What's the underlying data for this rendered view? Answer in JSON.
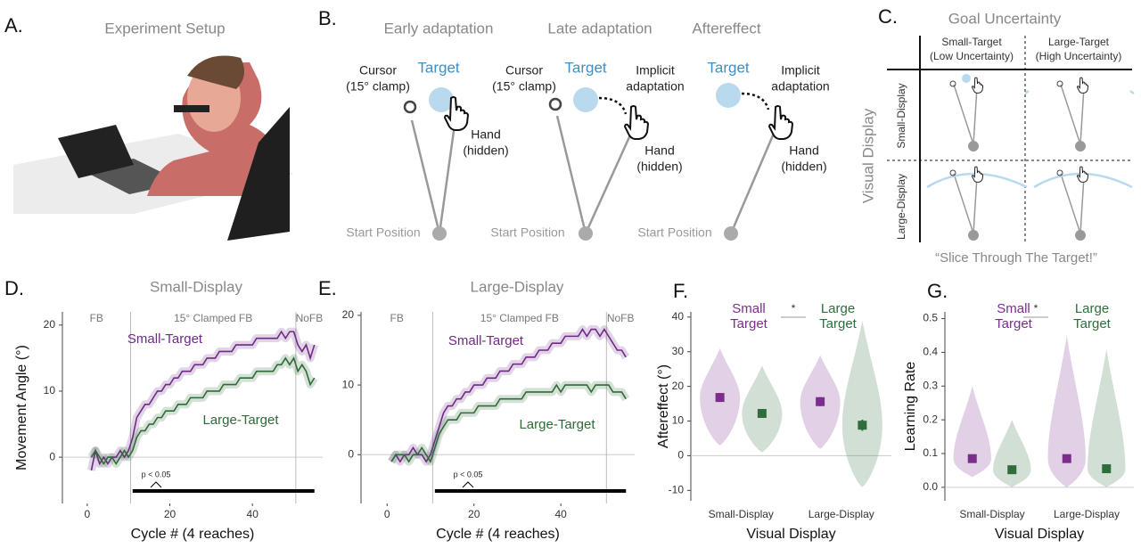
{
  "panel_a": {
    "label": "A.",
    "title": "Experiment Setup"
  },
  "panel_b": {
    "label": "B.",
    "panels": [
      {
        "title": "Early adaptation",
        "cursor": [
          "Cursor",
          "(15° clamp)"
        ],
        "target": "Target",
        "hand": [
          "Hand",
          "(hidden)"
        ],
        "start": "Start Position"
      },
      {
        "title": "Late adaptation",
        "cursor": [
          "Cursor",
          "(15° clamp)"
        ],
        "target": "Target",
        "implicit": [
          "Implicit",
          "adaptation"
        ],
        "hand": [
          "Hand",
          "(hidden)"
        ],
        "start": "Start Position"
      },
      {
        "title": "Aftereffect",
        "target": "Target",
        "implicit": [
          "Implicit",
          "adaptation"
        ],
        "hand": [
          "Hand",
          "(hidden)"
        ],
        "start": "Start Position"
      }
    ]
  },
  "panel_c": {
    "label": "C.",
    "title": "Goal Uncertainty",
    "columns": [
      [
        "Small-Target",
        "(Low Uncertainty)"
      ],
      [
        "Large-Target",
        "(High Uncertainty)"
      ]
    ],
    "rows": [
      "Small-Display",
      "Large-Display"
    ],
    "row_axis": "Visual Display",
    "footer": "“Slice Through The Target!”"
  },
  "chart_data": [
    {
      "type": "line",
      "panel_label": "D.",
      "title": "Small-Display",
      "x_label": "Cycle # (4 reaches)",
      "y_label": "Movement Angle (°)",
      "x": [
        1,
        2,
        3,
        4,
        5,
        6,
        7,
        8,
        9,
        10,
        11,
        12,
        13,
        14,
        15,
        16,
        17,
        18,
        19,
        20,
        21,
        22,
        23,
        24,
        25,
        26,
        27,
        28,
        29,
        30,
        31,
        32,
        33,
        34,
        35,
        36,
        37,
        38,
        39,
        40,
        41,
        42,
        43,
        44,
        45,
        46,
        47,
        48,
        49,
        50,
        51,
        52,
        53,
        54,
        55
      ],
      "series": [
        {
          "name": "Small-Target",
          "color": "#6f2a86",
          "values": [
            -2,
            1,
            -1,
            0,
            -1,
            0,
            0,
            1,
            0,
            1,
            3,
            6,
            7,
            8,
            8,
            9,
            10,
            10,
            11,
            11,
            12,
            12,
            13,
            13,
            13,
            14,
            14,
            14,
            15,
            15,
            15,
            16,
            16,
            16,
            16,
            17,
            17,
            17,
            17,
            17,
            18,
            18,
            18,
            18,
            18,
            18,
            19,
            18,
            19,
            19,
            17,
            16,
            17,
            15,
            17
          ]
        },
        {
          "name": "Large-Target",
          "color": "#2d6b37",
          "values": [
            0,
            1,
            0,
            -1,
            0,
            0,
            -1,
            0,
            1,
            0,
            1,
            3,
            4,
            4,
            5,
            5,
            6,
            6,
            7,
            7,
            7,
            8,
            8,
            8,
            9,
            9,
            9,
            9,
            10,
            10,
            10,
            10,
            11,
            11,
            11,
            11,
            12,
            12,
            12,
            12,
            13,
            13,
            13,
            13,
            13,
            14,
            14,
            15,
            14,
            15,
            13,
            14,
            13,
            11,
            12
          ]
        }
      ],
      "xlim": [
        -6,
        57
      ],
      "xticks": [
        0,
        20,
        40
      ],
      "ylim": [
        -7,
        22
      ],
      "yticks": [
        0,
        10,
        20
      ],
      "phases": [
        "FB",
        "15° Clamped FB",
        "NoFB"
      ],
      "phase_bounds": [
        10.5,
        50.5
      ],
      "sig_label": "p < 0.05",
      "sig_range": [
        11,
        55
      ]
    },
    {
      "type": "line",
      "panel_label": "E.",
      "title": "Large-Display",
      "x_label": "Cycle # (4 reaches)",
      "x": [
        1,
        2,
        3,
        4,
        5,
        6,
        7,
        8,
        9,
        10,
        11,
        12,
        13,
        14,
        15,
        16,
        17,
        18,
        19,
        20,
        21,
        22,
        23,
        24,
        25,
        26,
        27,
        28,
        29,
        30,
        31,
        32,
        33,
        34,
        35,
        36,
        37,
        38,
        39,
        40,
        41,
        42,
        43,
        44,
        45,
        46,
        47,
        48,
        49,
        50,
        51,
        52,
        53,
        54,
        55
      ],
      "series": [
        {
          "name": "Small-Target",
          "color": "#6f2a86",
          "values": [
            -1,
            0,
            -1,
            0,
            0,
            1,
            0,
            0,
            -1,
            0,
            2,
            4,
            6,
            7,
            7,
            8,
            8,
            9,
            9,
            10,
            10,
            10,
            11,
            11,
            11,
            12,
            12,
            12,
            13,
            13,
            13,
            14,
            14,
            14,
            15,
            15,
            15,
            16,
            16,
            16,
            17,
            17,
            17,
            17,
            18,
            17,
            18,
            18,
            17,
            18,
            17,
            16,
            15,
            15,
            14
          ]
        },
        {
          "name": "Large-Target",
          "color": "#2d6b37",
          "values": [
            -1,
            0,
            0,
            0,
            -1,
            0,
            0,
            1,
            0,
            -1,
            1,
            3,
            4,
            5,
            5,
            5,
            6,
            6,
            6,
            6,
            7,
            7,
            7,
            7,
            7,
            8,
            8,
            8,
            8,
            8,
            8,
            9,
            9,
            9,
            9,
            9,
            9,
            9,
            10,
            9,
            10,
            10,
            10,
            10,
            10,
            10,
            9,
            10,
            10,
            10,
            10,
            9,
            9,
            9,
            8
          ]
        }
      ],
      "xlim": [
        -6,
        57
      ],
      "xticks": [
        0,
        20,
        40
      ],
      "ylim": [
        -7,
        20.5
      ],
      "yticks": [
        0,
        10,
        20
      ],
      "phases": [
        "FB",
        "15° Clamped FB",
        "NoFB"
      ],
      "phase_bounds": [
        10.5,
        50.5
      ],
      "sig_label": "p < 0.05",
      "sig_range": [
        11,
        55
      ]
    },
    {
      "type": "violin",
      "panel_label": "F.",
      "x_label": "Visual Display",
      "y_label": "Aftereffect (°)",
      "categories": [
        "Small-Display",
        "Large-Display"
      ],
      "series": [
        {
          "name": "Small Target",
          "color": "#7b2d8e",
          "values": [
            16.8,
            15.6
          ],
          "errors": [
            1.3,
            1.3
          ],
          "ranges": [
            [
              3,
              31
            ],
            [
              2,
              29
            ]
          ]
        },
        {
          "name": "Large Target",
          "color": "#2f6e3c",
          "values": [
            12.2,
            8.8
          ],
          "errors": [
            1.2,
            1.6
          ],
          "ranges": [
            [
              1,
              26
            ],
            [
              -9,
              39
            ]
          ]
        }
      ],
      "sig_label": "*",
      "ylim": [
        -13,
        41.5
      ],
      "yticks": [
        -10,
        0,
        10,
        20,
        30,
        40
      ]
    },
    {
      "type": "violin",
      "panel_label": "G.",
      "x_label": "Visual Display",
      "y_label": "Learning Rate",
      "categories": [
        "Small-Display",
        "Large-Display"
      ],
      "series": [
        {
          "name": "Small Target",
          "color": "#7b2d8e",
          "values": [
            0.085,
            0.085
          ],
          "errors": [
            0.01,
            0.012
          ],
          "ranges": [
            [
              0.03,
              0.3
            ],
            [
              0.0,
              0.45
            ]
          ]
        },
        {
          "name": "Large Target",
          "color": "#2f6e3c",
          "values": [
            0.052,
            0.055
          ],
          "errors": [
            0.008,
            0.009
          ],
          "ranges": [
            [
              0.0,
              0.2
            ],
            [
              0.0,
              0.41
            ]
          ]
        }
      ],
      "sig_label": "*",
      "ylim": [
        -0.04,
        0.52
      ],
      "yticks": [
        {
          "value": 0,
          "label": "0.0"
        },
        0.1,
        0.2,
        0.3,
        0.4,
        0.5
      ]
    }
  ]
}
